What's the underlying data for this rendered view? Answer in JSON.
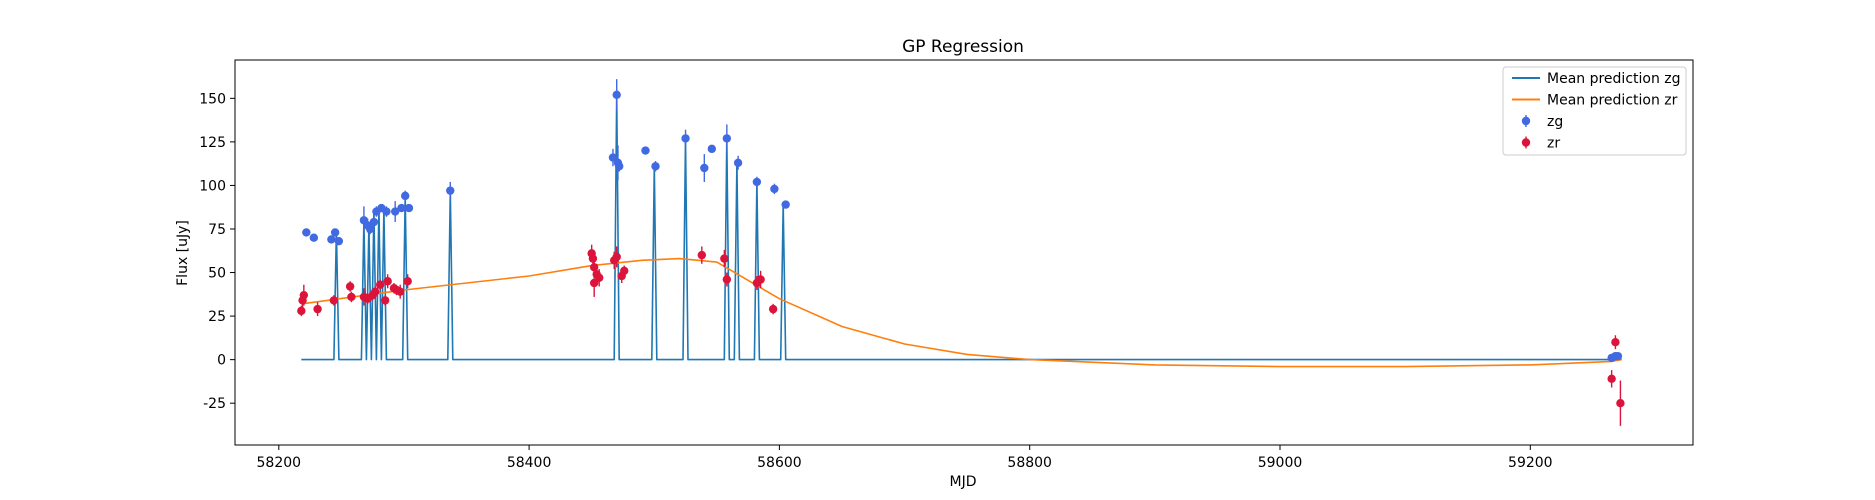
{
  "chart_data": {
    "type": "line",
    "title": "GP Regression",
    "xlabel": "MJD",
    "ylabel": "Flux [uJy]",
    "xlim": [
      58165,
      59330
    ],
    "ylim": [
      -49,
      172
    ],
    "xticks": [
      58200,
      58400,
      58600,
      58800,
      59000,
      59200
    ],
    "yticks": [
      -25,
      0,
      25,
      50,
      75,
      100,
      125,
      150
    ],
    "legend_position": "top-right",
    "legend": [
      {
        "label": "Mean prediction zg",
        "kind": "line",
        "color": "#1f77b4"
      },
      {
        "label": "Mean prediction zr",
        "kind": "line",
        "color": "#ff7f0e"
      },
      {
        "label": "zg",
        "kind": "errorbar",
        "color": "#4169e1"
      },
      {
        "label": "zr",
        "kind": "errorbar",
        "color": "#dc143c"
      }
    ],
    "series": [
      {
        "name": "Mean prediction zg",
        "kind": "line",
        "color": "#1f77b4",
        "x": [
          58218,
          58244,
          58246,
          58248,
          58266,
          58268,
          58270,
          58272,
          58274,
          58276,
          58278,
          58280,
          58282,
          58284,
          58286,
          58288,
          58299,
          58301,
          58303,
          58335,
          58337,
          58339,
          58468,
          58470,
          58472,
          58498,
          58500,
          58502,
          58523,
          58525,
          58527,
          58556,
          58558,
          58560,
          58564,
          58566,
          58568,
          58580,
          58582,
          58584,
          58601,
          58603,
          58605,
          59265,
          59267,
          59269,
          59271,
          59273
        ],
        "y": [
          0,
          0,
          74,
          0,
          0,
          80,
          0,
          77,
          0,
          85,
          0,
          87,
          0,
          86,
          0,
          0,
          0,
          94,
          0,
          0,
          97,
          0,
          0,
          152,
          0,
          0,
          111,
          0,
          0,
          127,
          0,
          0,
          127,
          0,
          0,
          113,
          0,
          0,
          102,
          0,
          0,
          89,
          0,
          0,
          1,
          2,
          1,
          0
        ]
      },
      {
        "name": "Mean prediction zr",
        "kind": "line",
        "color": "#ff7f0e",
        "x": [
          58218,
          58300,
          58400,
          58450,
          58490,
          58520,
          58550,
          58600,
          58650,
          58700,
          58750,
          58800,
          58900,
          59000,
          59100,
          59200,
          59265,
          59273
        ],
        "y": [
          32,
          40,
          48,
          54,
          57,
          58,
          56,
          35,
          19,
          9,
          3,
          0,
          -3,
          -4,
          -4,
          -3,
          -1,
          0
        ]
      },
      {
        "name": "zg",
        "kind": "errorbar",
        "color": "#4169e1",
        "points": [
          {
            "x": 58222,
            "y": 73,
            "err": 1
          },
          {
            "x": 58228,
            "y": 70,
            "err": 1
          },
          {
            "x": 58242,
            "y": 69,
            "err": 1
          },
          {
            "x": 58245,
            "y": 73,
            "err": 2
          },
          {
            "x": 58248,
            "y": 68,
            "err": 1
          },
          {
            "x": 58268,
            "y": 80,
            "err": 8
          },
          {
            "x": 58271,
            "y": 77,
            "err": 4
          },
          {
            "x": 58273,
            "y": 75,
            "err": 3
          },
          {
            "x": 58276,
            "y": 79,
            "err": 2
          },
          {
            "x": 58278,
            "y": 85,
            "err": 3
          },
          {
            "x": 58282,
            "y": 87,
            "err": 2
          },
          {
            "x": 58286,
            "y": 85,
            "err": 3
          },
          {
            "x": 58293,
            "y": 85,
            "err": 6
          },
          {
            "x": 58298,
            "y": 87,
            "err": 2
          },
          {
            "x": 58301,
            "y": 94,
            "err": 3
          },
          {
            "x": 58304,
            "y": 87,
            "err": 2
          },
          {
            "x": 58337,
            "y": 97,
            "err": 5
          },
          {
            "x": 58467,
            "y": 116,
            "err": 5
          },
          {
            "x": 58470,
            "y": 152,
            "err": 9
          },
          {
            "x": 58471,
            "y": 113,
            "err": 10
          },
          {
            "x": 58472,
            "y": 111,
            "err": 3
          },
          {
            "x": 58493,
            "y": 120,
            "err": 2
          },
          {
            "x": 58501,
            "y": 111,
            "err": 3
          },
          {
            "x": 58525,
            "y": 127,
            "err": 5
          },
          {
            "x": 58540,
            "y": 110,
            "err": 8
          },
          {
            "x": 58546,
            "y": 121,
            "err": 2
          },
          {
            "x": 58558,
            "y": 127,
            "err": 8
          },
          {
            "x": 58567,
            "y": 113,
            "err": 4
          },
          {
            "x": 58582,
            "y": 102,
            "err": 3
          },
          {
            "x": 58596,
            "y": 98,
            "err": 3
          },
          {
            "x": 58605,
            "y": 89,
            "err": 2
          },
          {
            "x": 59265,
            "y": 1,
            "err": 2
          },
          {
            "x": 59268,
            "y": 2,
            "err": 2
          },
          {
            "x": 59270,
            "y": 2,
            "err": 2
          }
        ]
      },
      {
        "name": "zr",
        "kind": "errorbar",
        "color": "#dc143c",
        "points": [
          {
            "x": 58218,
            "y": 28,
            "err": 3
          },
          {
            "x": 58219,
            "y": 34,
            "err": 4
          },
          {
            "x": 58220,
            "y": 37,
            "err": 6
          },
          {
            "x": 58231,
            "y": 29,
            "err": 4
          },
          {
            "x": 58244,
            "y": 34,
            "err": 3
          },
          {
            "x": 58257,
            "y": 42,
            "err": 3
          },
          {
            "x": 58258,
            "y": 36,
            "err": 3
          },
          {
            "x": 58268,
            "y": 36,
            "err": 5
          },
          {
            "x": 58271,
            "y": 35,
            "err": 3
          },
          {
            "x": 58275,
            "y": 37,
            "err": 3
          },
          {
            "x": 58277,
            "y": 39,
            "err": 3
          },
          {
            "x": 58281,
            "y": 43,
            "err": 3
          },
          {
            "x": 58285,
            "y": 34,
            "err": 3
          },
          {
            "x": 58287,
            "y": 45,
            "err": 4
          },
          {
            "x": 58292,
            "y": 41,
            "err": 3
          },
          {
            "x": 58294,
            "y": 40,
            "err": 3
          },
          {
            "x": 58297,
            "y": 39,
            "err": 4
          },
          {
            "x": 58303,
            "y": 45,
            "err": 4
          },
          {
            "x": 58450,
            "y": 61,
            "err": 5
          },
          {
            "x": 58451,
            "y": 58,
            "err": 5
          },
          {
            "x": 58452,
            "y": 53,
            "err": 6
          },
          {
            "x": 58452,
            "y": 44,
            "err": 8
          },
          {
            "x": 58454,
            "y": 49,
            "err": 6
          },
          {
            "x": 58456,
            "y": 47,
            "err": 5
          },
          {
            "x": 58468,
            "y": 57,
            "err": 5
          },
          {
            "x": 58470,
            "y": 59,
            "err": 6
          },
          {
            "x": 58474,
            "y": 48,
            "err": 4
          },
          {
            "x": 58476,
            "y": 51,
            "err": 3
          },
          {
            "x": 58538,
            "y": 60,
            "err": 5
          },
          {
            "x": 58556,
            "y": 58,
            "err": 5
          },
          {
            "x": 58558,
            "y": 46,
            "err": 4
          },
          {
            "x": 58582,
            "y": 44,
            "err": 4
          },
          {
            "x": 58585,
            "y": 46,
            "err": 5
          },
          {
            "x": 58595,
            "y": 29,
            "err": 3
          },
          {
            "x": 59265,
            "y": -11,
            "err": 5
          },
          {
            "x": 59268,
            "y": 10,
            "err": 4
          },
          {
            "x": 59272,
            "y": -25,
            "err": 13
          }
        ]
      }
    ]
  }
}
